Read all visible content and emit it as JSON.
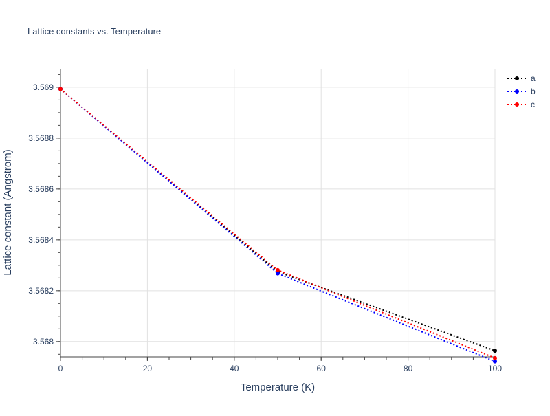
{
  "chart_data": {
    "type": "line",
    "title": "Lattice constants vs. Temperature",
    "xlabel": "Temperature (K)",
    "ylabel": "Lattice constant (Angstrom)",
    "x": [
      0,
      50,
      100
    ],
    "xlim": [
      0,
      100
    ],
    "ylim": [
      3.56794,
      3.56907
    ],
    "x_ticks": [
      0,
      20,
      40,
      60,
      80,
      100
    ],
    "x_tick_labels": [
      "0",
      "20",
      "40",
      "60",
      "80",
      "100"
    ],
    "y_ticks": [
      3.568,
      3.5682,
      3.5684,
      3.5686,
      3.5688,
      3.569
    ],
    "y_tick_labels": [
      "3.568",
      "3.5682",
      "3.5684",
      "3.5686",
      "3.5688",
      "3.569"
    ],
    "grid": true,
    "legend_position": "top-right",
    "line_style": "dotted",
    "markers": true,
    "series": [
      {
        "name": "a",
        "color": "#000000",
        "values": [
          3.568993,
          3.568275,
          3.567964
        ]
      },
      {
        "name": "b",
        "color": "#0000ff",
        "values": [
          3.568993,
          3.568268,
          3.567922
        ]
      },
      {
        "name": "c",
        "color": "#ff0000",
        "values": [
          3.568993,
          3.568281,
          3.567935
        ]
      }
    ]
  }
}
